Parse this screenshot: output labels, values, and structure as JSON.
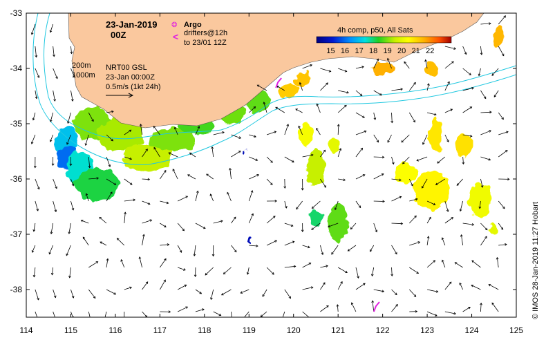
{
  "map": {
    "lon_range": [
      114,
      125
    ],
    "lat_range": [
      -38.5,
      -33
    ],
    "x_ticks": [
      "114",
      "115",
      "116",
      "117",
      "118",
      "119",
      "120",
      "121",
      "122",
      "123",
      "124",
      "125"
    ],
    "y_ticks": [
      "-33",
      "-34",
      "-35",
      "-36",
      "-37",
      "-38"
    ],
    "land_color": "#fac89e",
    "ocean_color": "#ffffff",
    "contour_color": "#20c8e0",
    "arrow_color": "#000000",
    "drifter_color": "#e020e0"
  },
  "header": {
    "date": "23-Jan-2019",
    "hour": "00Z"
  },
  "legend": {
    "argo_label": "Argo",
    "drifter_label_1": "drifters@12h",
    "drifter_label_2": "to 23/01 12Z",
    "argo_symbol": "❂",
    "drifter_symbol": "<"
  },
  "info": {
    "depth_200": "200m",
    "depth_1000": "1000m",
    "source": "NRT00 GSL",
    "time": "23-Jan 00:00Z",
    "scale": "0.5m/s (1kt 24h)"
  },
  "colorbar": {
    "title": "4h comp, p50, All Sats",
    "labels": [
      "15",
      "16",
      "17",
      "18",
      "19",
      "20",
      "21",
      "22"
    ],
    "range": [
      14,
      23.5
    ]
  },
  "credit": "©  IMOS 28-Jan-2019 11:27 Hobart",
  "sst_patches": [
    {
      "lon": 114.9,
      "lat": -35.3,
      "t": 17.0,
      "rx": 0.25,
      "ry": 0.25
    },
    {
      "lon": 114.9,
      "lat": -35.6,
      "t": 16.0,
      "rx": 0.25,
      "ry": 0.2
    },
    {
      "lon": 115.2,
      "lat": -35.8,
      "t": 17.5,
      "rx": 0.3,
      "ry": 0.3
    },
    {
      "lon": 115.6,
      "lat": -36.1,
      "t": 18.2,
      "rx": 0.5,
      "ry": 0.3
    },
    {
      "lon": 115.5,
      "lat": -35.0,
      "t": 19.0,
      "rx": 0.45,
      "ry": 0.3
    },
    {
      "lon": 116.1,
      "lat": -35.2,
      "t": 19.3,
      "rx": 0.5,
      "ry": 0.3
    },
    {
      "lon": 116.7,
      "lat": -35.6,
      "t": 19.5,
      "rx": 0.55,
      "ry": 0.25
    },
    {
      "lon": 117.3,
      "lat": -35.3,
      "t": 19.0,
      "rx": 0.5,
      "ry": 0.22
    },
    {
      "lon": 117.8,
      "lat": -35.0,
      "t": 18.6,
      "rx": 0.4,
      "ry": 0.2
    },
    {
      "lon": 118.6,
      "lat": -34.8,
      "t": 18.9,
      "rx": 0.3,
      "ry": 0.2
    },
    {
      "lon": 119.2,
      "lat": -34.6,
      "t": 18.8,
      "rx": 0.3,
      "ry": 0.2
    },
    {
      "lon": 119.9,
      "lat": -34.4,
      "t": 21.2,
      "rx": 0.2,
      "ry": 0.15
    },
    {
      "lon": 120.2,
      "lat": -34.2,
      "t": 21.3,
      "rx": 0.18,
      "ry": 0.15
    },
    {
      "lon": 122.0,
      "lat": -34.0,
      "t": 21.6,
      "rx": 0.25,
      "ry": 0.12
    },
    {
      "lon": 123.1,
      "lat": -34.0,
      "t": 21.4,
      "rx": 0.15,
      "ry": 0.12
    },
    {
      "lon": 124.6,
      "lat": -33.4,
      "t": 21.5,
      "rx": 0.12,
      "ry": 0.2
    },
    {
      "lon": 120.3,
      "lat": -35.2,
      "t": 20.3,
      "rx": 0.15,
      "ry": 0.2
    },
    {
      "lon": 120.5,
      "lat": -35.8,
      "t": 19.5,
      "rx": 0.2,
      "ry": 0.35
    },
    {
      "lon": 120.9,
      "lat": -35.4,
      "t": 20.0,
      "rx": 0.1,
      "ry": 0.15
    },
    {
      "lon": 121.0,
      "lat": -36.8,
      "t": 18.8,
      "rx": 0.22,
      "ry": 0.35
    },
    {
      "lon": 120.5,
      "lat": -36.7,
      "t": 18.0,
      "rx": 0.15,
      "ry": 0.15
    },
    {
      "lon": 122.5,
      "lat": -35.9,
      "t": 20.4,
      "rx": 0.25,
      "ry": 0.2
    },
    {
      "lon": 123.1,
      "lat": -36.2,
      "t": 20.6,
      "rx": 0.4,
      "ry": 0.35
    },
    {
      "lon": 123.2,
      "lat": -35.2,
      "t": 20.8,
      "rx": 0.15,
      "ry": 0.3
    },
    {
      "lon": 123.8,
      "lat": -35.4,
      "t": 20.9,
      "rx": 0.2,
      "ry": 0.2
    },
    {
      "lon": 124.2,
      "lat": -36.4,
      "t": 20.2,
      "rx": 0.25,
      "ry": 0.3
    },
    {
      "lon": 124.5,
      "lat": -36.9,
      "t": 20.0,
      "rx": 0.1,
      "ry": 0.1
    },
    {
      "lon": 118.9,
      "lat": -35.5,
      "t": 14.8,
      "rx": 0.03,
      "ry": 0.04
    },
    {
      "lon": 119.0,
      "lat": -37.1,
      "t": 14.8,
      "rx": 0.03,
      "ry": 0.04
    }
  ],
  "drifters": [
    {
      "lon": 119.65,
      "lat": -34.25
    },
    {
      "lon": 121.85,
      "lat": -38.3
    }
  ]
}
